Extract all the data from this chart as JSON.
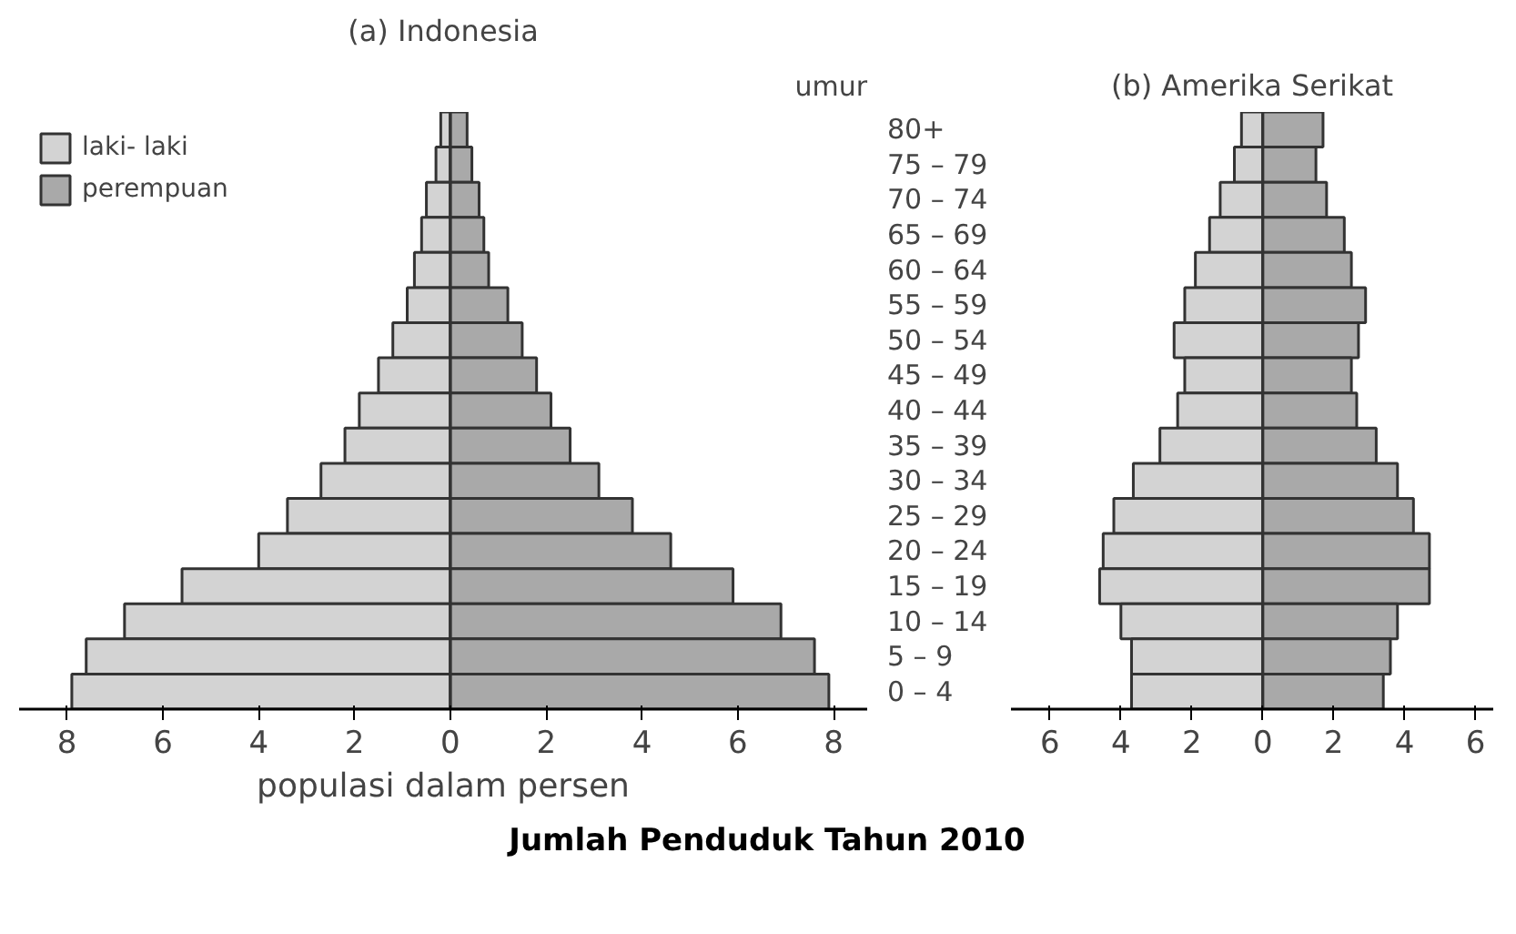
{
  "chart_data": [
    {
      "type": "bar",
      "orientation": "horizontal",
      "stacked": true,
      "title": "(a) Indonesia",
      "ylabel": "umur",
      "xlabel": "populasi dalam persen",
      "categories": [
        "80+",
        "75 – 79",
        "70 – 74",
        "65 – 69",
        "60 – 64",
        "55 – 59",
        "50 – 54",
        "45 – 49",
        "40 – 44",
        "35 – 39",
        "30 – 34",
        "25 – 29",
        "20 – 24",
        "15 – 19",
        "10 – 14",
        "5 – 9",
        "0 – 4"
      ],
      "series": [
        {
          "name": "laki- laki",
          "color": "#d3d3d3",
          "values": [
            -0.2,
            -0.3,
            -0.5,
            -0.6,
            -0.75,
            -0.9,
            -1.2,
            -1.5,
            -1.9,
            -2.2,
            -2.7,
            -3.4,
            -4.0,
            -5.6,
            -6.8,
            -7.6,
            -7.9
          ]
        },
        {
          "name": "perempuan",
          "color": "#a9a9a9",
          "values": [
            0.35,
            0.45,
            0.6,
            0.7,
            0.8,
            1.2,
            1.5,
            1.8,
            2.1,
            2.5,
            3.1,
            3.8,
            4.6,
            5.9,
            6.9,
            7.6,
            7.9
          ]
        }
      ],
      "xlim": [
        -9,
        8.7
      ],
      "xticks": [
        {
          "value": -8,
          "label": "8"
        },
        {
          "value": -6,
          "label": "6"
        },
        {
          "value": -4,
          "label": "4"
        },
        {
          "value": -2,
          "label": "2"
        },
        0,
        2,
        4,
        6,
        8
      ],
      "legend": "top left",
      "annotations": [
        "Jumlah Penduduk Tahun 2010"
      ]
    },
    {
      "type": "bar",
      "orientation": "horizontal",
      "stacked": true,
      "title": "(b) Amerika Serikat",
      "categories": [
        null,
        null,
        null,
        null,
        null,
        null,
        null,
        null,
        null,
        null,
        null,
        null,
        null,
        null,
        null,
        null,
        null
      ],
      "series": [
        {
          "color": "#d3d3d3",
          "values": [
            -0.6,
            -0.8,
            -1.2,
            -1.5,
            -1.9,
            -2.2,
            -2.5,
            -2.2,
            -2.4,
            -2.9,
            -3.65,
            -4.2,
            -4.5,
            -4.6,
            -4.0,
            -3.7,
            -3.7
          ]
        },
        {
          "color": "#a9a9a9",
          "values": [
            1.7,
            1.5,
            1.8,
            2.3,
            2.5,
            2.9,
            2.7,
            2.5,
            2.65,
            3.2,
            3.8,
            4.25,
            4.7,
            4.7,
            3.8,
            3.6,
            3.4
          ]
        }
      ],
      "xlim": [
        -7.1,
        6.5
      ],
      "xticks": [
        {
          "value": -6,
          "label": "6"
        },
        {
          "value": -4,
          "label": "4"
        },
        {
          "value": -2,
          "label": "2"
        },
        0,
        2,
        4,
        6
      ],
      "tick_labels": "x"
    }
  ]
}
